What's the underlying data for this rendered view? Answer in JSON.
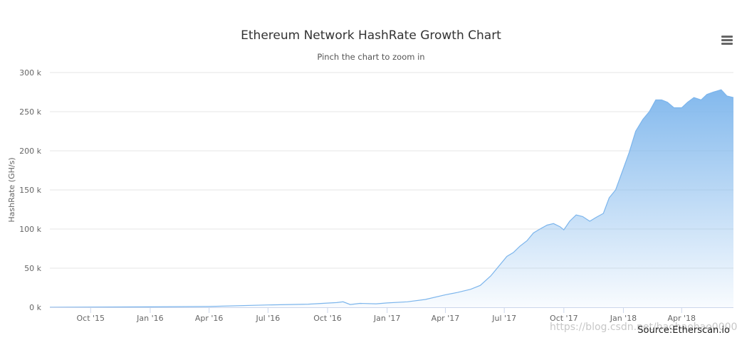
{
  "title": "Ethereum Network HashRate Growth Chart",
  "subtitle": "Pinch the chart to zoom in",
  "menu_icon": "hamburger-menu-icon",
  "source": "Source:Etherscan.io",
  "watermark": "https://blog.csdn.net/haohaohao0000",
  "colors": {
    "line": "#7cb5ec",
    "area_top": "#7cb5ec",
    "grid": "#e6e6e6",
    "axis_text": "#666666"
  },
  "chart_data": {
    "type": "area",
    "title": "Ethereum Network HashRate Growth Chart",
    "subtitle": "Pinch the chart to zoom in",
    "xlabel": "",
    "ylabel": "HashRate (GH/s)",
    "ylim": [
      0,
      300000
    ],
    "yticks": [
      0,
      50000,
      100000,
      150000,
      200000,
      250000,
      300000
    ],
    "ytick_labels": [
      "0 k",
      "50 k",
      "100 k",
      "150 k",
      "200 k",
      "250 k",
      "300 k"
    ],
    "xlim": [
      "2015-07-30",
      "2018-06-20"
    ],
    "xticks": [
      "2015-10-01",
      "2016-01-01",
      "2016-04-01",
      "2016-07-01",
      "2016-10-01",
      "2017-01-01",
      "2017-04-01",
      "2017-07-01",
      "2017-10-01",
      "2018-01-01",
      "2018-04-01"
    ],
    "xtick_labels": [
      "Oct '15",
      "Jan '16",
      "Apr '16",
      "Jul '16",
      "Oct '16",
      "Jan '17",
      "Apr '17",
      "Jul '17",
      "Oct '17",
      "Jan '18",
      "Apr '18"
    ],
    "grid": true,
    "legend": false,
    "series": [
      {
        "x": [
          "2015-07-30",
          "2015-10-01",
          "2016-01-01",
          "2016-04-01",
          "2016-07-01",
          "2016-09-01",
          "2016-10-15",
          "2016-10-25",
          "2016-11-05",
          "2016-11-20",
          "2016-12-15",
          "2017-01-01",
          "2017-02-01",
          "2017-03-01",
          "2017-04-01",
          "2017-04-20",
          "2017-05-10",
          "2017-05-25",
          "2017-06-10",
          "2017-06-25",
          "2017-07-05",
          "2017-07-15",
          "2017-07-25",
          "2017-08-05",
          "2017-08-15",
          "2017-08-25",
          "2017-09-05",
          "2017-09-15",
          "2017-09-25",
          "2017-10-01",
          "2017-10-10",
          "2017-10-20",
          "2017-10-30",
          "2017-11-10",
          "2017-11-20",
          "2017-12-01",
          "2017-12-10",
          "2017-12-20",
          "2017-12-31",
          "2018-01-10",
          "2018-01-20",
          "2018-01-31",
          "2018-02-10",
          "2018-02-20",
          "2018-03-01",
          "2018-03-10",
          "2018-03-20",
          "2018-04-01",
          "2018-04-10",
          "2018-04-20",
          "2018-05-01",
          "2018-05-10",
          "2018-05-20",
          "2018-06-01",
          "2018-06-10",
          "2018-06-20"
        ],
        "y": [
          0,
          300,
          500,
          1000,
          3000,
          4000,
          6000,
          7000,
          3500,
          5000,
          4500,
          5500,
          7000,
          10000,
          16000,
          19000,
          23000,
          28000,
          40000,
          55000,
          65000,
          70000,
          78000,
          85000,
          95000,
          100000,
          105000,
          107000,
          103000,
          99000,
          110000,
          118000,
          116000,
          110000,
          115000,
          120000,
          140000,
          150000,
          175000,
          198000,
          225000,
          240000,
          250000,
          265000,
          265000,
          262000,
          255000,
          255000,
          262000,
          268000,
          265000,
          272000,
          275000,
          278000,
          270000,
          268000
        ]
      }
    ]
  }
}
